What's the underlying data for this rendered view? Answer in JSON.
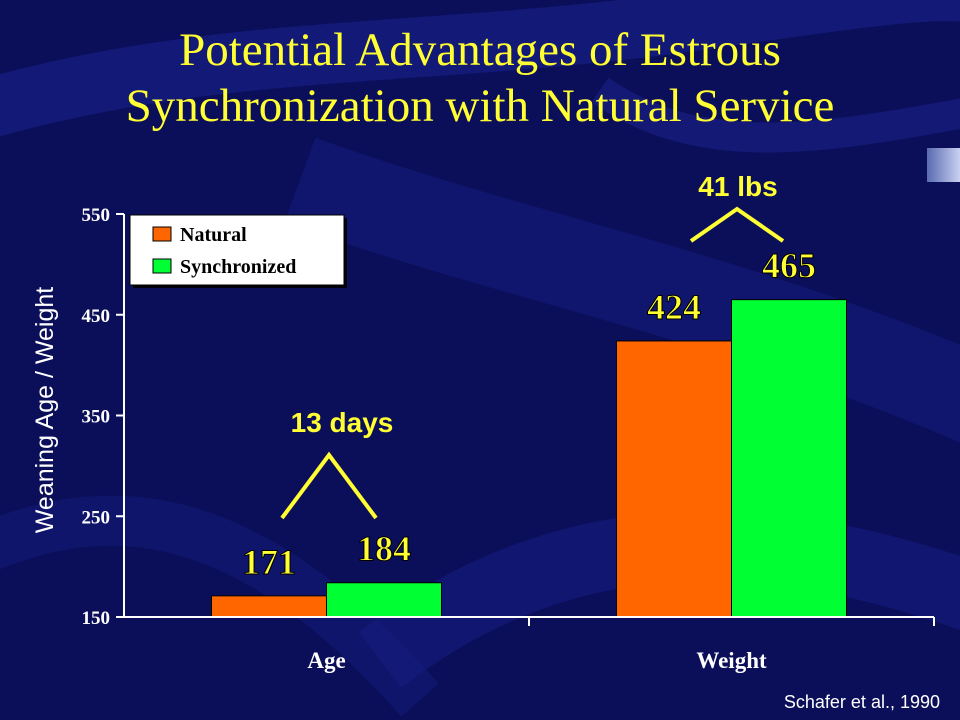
{
  "slide": {
    "title_line1": "Potential Advantages of Estrous",
    "title_line2": "Synchronization with Natural Service",
    "source": "Schafer et al., 1990",
    "background_color": "#0b0f5a",
    "title_color": "#ffff33"
  },
  "chart_data": {
    "type": "bar",
    "categories": [
      "Age",
      "Weight"
    ],
    "series": [
      {
        "name": "Natural",
        "values": [
          171,
          424
        ],
        "color": "#ff6600"
      },
      {
        "name": "Synchronized",
        "values": [
          184,
          465
        ],
        "color": "#00ff33"
      }
    ],
    "value_labels": [
      [
        "171",
        "424"
      ],
      [
        "184",
        "465"
      ]
    ],
    "ylabel": "Weaning Age / Weight",
    "xlabel": "",
    "ylim": [
      150,
      550
    ],
    "yticks": [
      150,
      250,
      350,
      450,
      550
    ],
    "grid": false,
    "legend_position": "top-left",
    "annotations": [
      {
        "text": "13 days",
        "category": "Age"
      },
      {
        "text": "41 lbs",
        "category": "Weight"
      }
    ]
  }
}
